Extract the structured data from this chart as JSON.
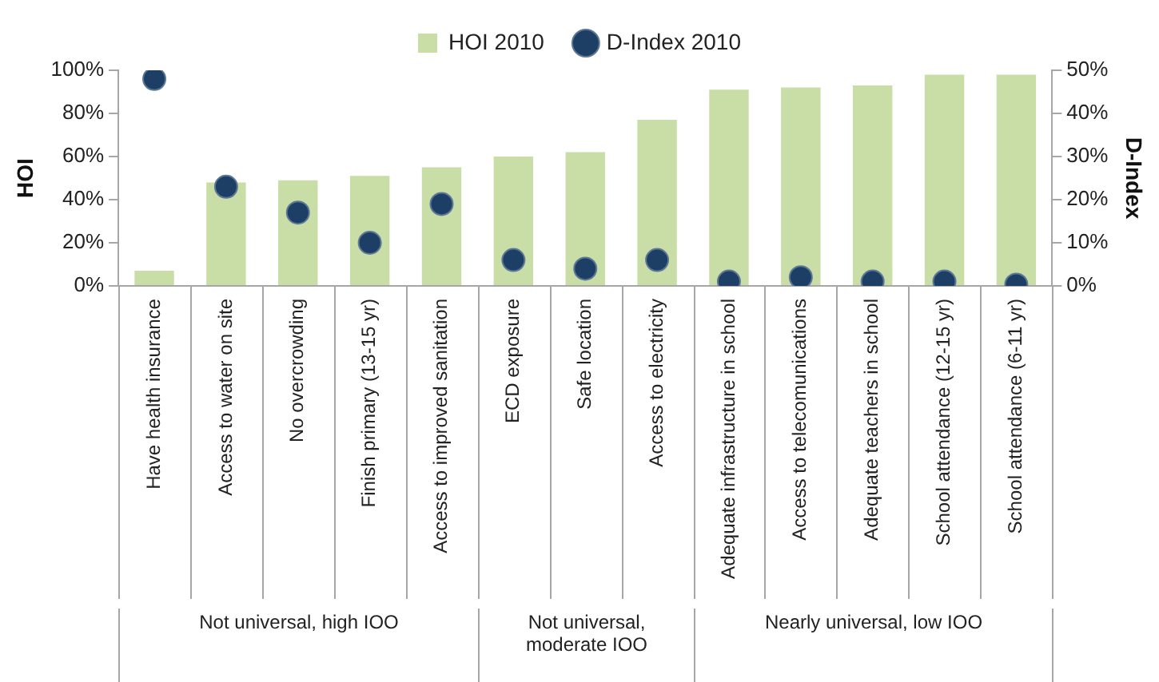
{
  "chart_data": {
    "type": "bar",
    "ylabel": "HOI",
    "y2label": "D-Index",
    "legend": "top",
    "marker": "circle",
    "categories": [
      "Have health insurance",
      "Access to water on site",
      "No overcrowding",
      "Finish primary (13-15 yr)",
      "Access to improved sanitation",
      "ECD exposure",
      "Safe location",
      "Access to electricity",
      "Adequate infrastructure in school",
      "Access to telecomunications",
      "Adequate teachers in school",
      "School attendance (12-15 yr)",
      "School attendance (6-11 yr)"
    ],
    "series": [
      {
        "name": "HOI 2010",
        "color": "#c9dea7",
        "values": [
          7,
          48,
          49,
          51,
          55,
          60,
          62,
          77,
          91,
          92,
          93,
          98,
          98
        ]
      },
      {
        "name": "D-Index 2010",
        "type": "scatter",
        "axis": "y2",
        "color": "#1d3f66",
        "values": [
          48,
          23,
          17,
          10,
          19,
          6,
          4,
          6,
          1,
          2,
          1,
          1,
          0.3
        ]
      }
    ],
    "ylim": [
      0,
      100
    ],
    "yticks": [
      {
        "value": 0,
        "label": "0%"
      },
      {
        "value": 20,
        "label": "20%"
      },
      {
        "value": 40,
        "label": "40%"
      },
      {
        "value": 60,
        "label": "60%"
      },
      {
        "value": 80,
        "label": "80%"
      },
      {
        "value": 100,
        "label": "100%"
      }
    ],
    "y2lim": [
      0,
      50
    ],
    "y2ticks": [
      {
        "value": 0,
        "label": "0%"
      },
      {
        "value": 10,
        "label": "10%"
      },
      {
        "value": 20,
        "label": "20%"
      },
      {
        "value": 30,
        "label": "30%"
      },
      {
        "value": 40,
        "label": "40%"
      },
      {
        "value": 50,
        "label": "50%"
      }
    ],
    "annotations": [
      "Not universal, high IOO",
      "Not universal, moderate IOO",
      "Nearly universal, low IOO"
    ]
  }
}
